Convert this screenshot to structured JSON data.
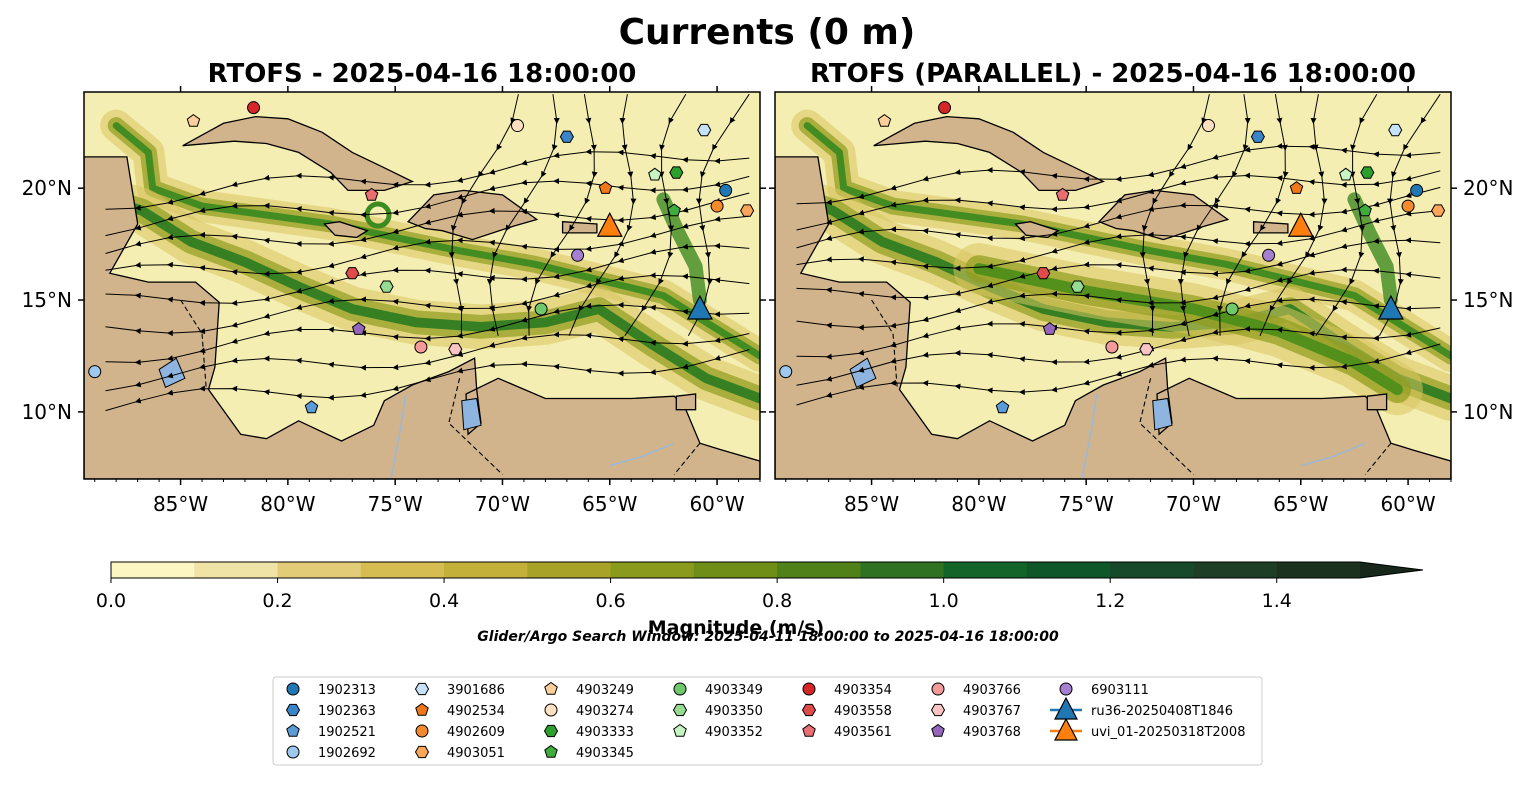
{
  "figure": {
    "title": "Currents (0 m)",
    "note": "Glider/Argo Search Window: 2025-04-11 18:00:00 to 2025-04-16 18:00:00"
  },
  "colors": {
    "land": "#d2b48c",
    "water": "#f5eeb2",
    "coast": "#000000",
    "lake": "#8eb4e0",
    "colormap": [
      "#fbf6c2",
      "#efe3a5",
      "#e2cc78",
      "#d5bd52",
      "#c3b03a",
      "#a8a228",
      "#8a9a1c",
      "#6e8e18",
      "#508018",
      "#2e7222",
      "#126428",
      "#0f5728",
      "#174a2a",
      "#1e3f26",
      "#1c321f",
      "#17271a"
    ]
  },
  "chart_data": [
    {
      "type": "map",
      "title": "RTOFS - 2025-04-16 18:00:00",
      "lon_range": [
        -89.5,
        -58.0
      ],
      "lat_range": [
        7.0,
        24.3
      ],
      "x_ticks": [
        "85°W",
        "80°W",
        "75°W",
        "70°W",
        "65°W",
        "60°W"
      ],
      "x_tick_values": [
        -85,
        -80,
        -75,
        -70,
        -65,
        -60
      ],
      "y_ticks": [
        "20°N",
        "15°N",
        "10°N"
      ],
      "y_tick_values": [
        20,
        15,
        10
      ],
      "y_tick_side": "left"
    },
    {
      "type": "map",
      "title": "RTOFS (PARALLEL) - 2025-04-16 18:00:00",
      "lon_range": [
        -89.5,
        -58.0
      ],
      "lat_range": [
        7.0,
        24.3
      ],
      "x_ticks": [
        "85°W",
        "80°W",
        "75°W",
        "70°W",
        "65°W",
        "60°W"
      ],
      "x_tick_values": [
        -85,
        -80,
        -75,
        -70,
        -65,
        -60
      ],
      "y_ticks": [
        "20°N",
        "15°N",
        "10°N"
      ],
      "y_tick_values": [
        20,
        15,
        10
      ],
      "y_tick_side": "right"
    }
  ],
  "colorbar": {
    "label": "Magnitude (m/s)",
    "min": 0.0,
    "max": 1.5,
    "extend": "max",
    "ticks": [
      "0.0",
      "0.2",
      "0.4",
      "0.6",
      "0.8",
      "1.0",
      "1.2",
      "1.4"
    ],
    "tick_values": [
      0.0,
      0.2,
      0.4,
      0.6,
      0.8,
      1.0,
      1.2,
      1.4
    ]
  },
  "floats": [
    {
      "id": "1902313",
      "marker": "circle",
      "color": "#1f77b4",
      "lon": -59.6,
      "lat": 19.9
    },
    {
      "id": "1902363",
      "marker": "hexagon",
      "color": "#3a84c8",
      "lon": -67.0,
      "lat": 22.3
    },
    {
      "id": "1902521",
      "marker": "pentagon",
      "color": "#5a9bd8",
      "lon": -78.9,
      "lat": 10.2
    },
    {
      "id": "1902692",
      "marker": "circle",
      "color": "#9ec8ee",
      "lon": -89.0,
      "lat": 11.8
    },
    {
      "id": "3901686",
      "marker": "hexagon",
      "color": "#c6e2fb",
      "lon": -60.6,
      "lat": 22.6
    },
    {
      "id": "4902534",
      "marker": "pentagon",
      "color": "#f07818",
      "lon": -65.2,
      "lat": 20.0
    },
    {
      "id": "4902609",
      "marker": "circle",
      "color": "#f48a2e",
      "lon": -60.0,
      "lat": 19.2
    },
    {
      "id": "4903051",
      "marker": "hexagon",
      "color": "#fba65a",
      "lon": -58.6,
      "lat": 19.0
    },
    {
      "id": "4903249",
      "marker": "pentagon",
      "color": "#fdcf9a",
      "lon": -84.4,
      "lat": 23.0
    },
    {
      "id": "4903274",
      "marker": "circle",
      "color": "#ffe0c0",
      "lon": -69.3,
      "lat": 22.8
    },
    {
      "id": "4903333",
      "marker": "hexagon",
      "color": "#2ca02c",
      "lon": -61.9,
      "lat": 20.7
    },
    {
      "id": "4903345",
      "marker": "pentagon",
      "color": "#3ead3e",
      "lon": -62.0,
      "lat": 19.0
    },
    {
      "id": "4903349",
      "marker": "circle",
      "color": "#6fc86a",
      "lon": -68.2,
      "lat": 14.6
    },
    {
      "id": "4903350",
      "marker": "hexagon",
      "color": "#97db92",
      "lon": -75.4,
      "lat": 15.6
    },
    {
      "id": "4903352",
      "marker": "pentagon",
      "color": "#c6f5c2",
      "lon": -62.9,
      "lat": 20.6
    },
    {
      "id": "4903354",
      "marker": "circle",
      "color": "#d62728",
      "lon": -81.6,
      "lat": 23.6
    },
    {
      "id": "4903558",
      "marker": "hexagon",
      "color": "#df4a4a",
      "lon": -77.0,
      "lat": 16.2
    },
    {
      "id": "4903561",
      "marker": "pentagon",
      "color": "#e86e72",
      "lon": -76.1,
      "lat": 19.7
    },
    {
      "id": "4903766",
      "marker": "circle",
      "color": "#f49a9a",
      "lon": -73.8,
      "lat": 12.9
    },
    {
      "id": "4903767",
      "marker": "hexagon",
      "color": "#fbc4c4",
      "lon": -72.2,
      "lat": 12.8
    },
    {
      "id": "4903768",
      "marker": "pentagon",
      "color": "#9467bd",
      "lon": -76.7,
      "lat": 13.7
    },
    {
      "id": "6903111",
      "marker": "circle",
      "color": "#a57fd0",
      "lon": -66.5,
      "lat": 17.0
    }
  ],
  "gliders": [
    {
      "id": "ru36-20250408T1846",
      "color": "#1f77b4",
      "lon": -60.8,
      "lat": 14.6
    },
    {
      "id": "uvi_01-20250318T2008",
      "color": "#ff7f0e",
      "lon": -65.0,
      "lat": 18.3
    }
  ]
}
